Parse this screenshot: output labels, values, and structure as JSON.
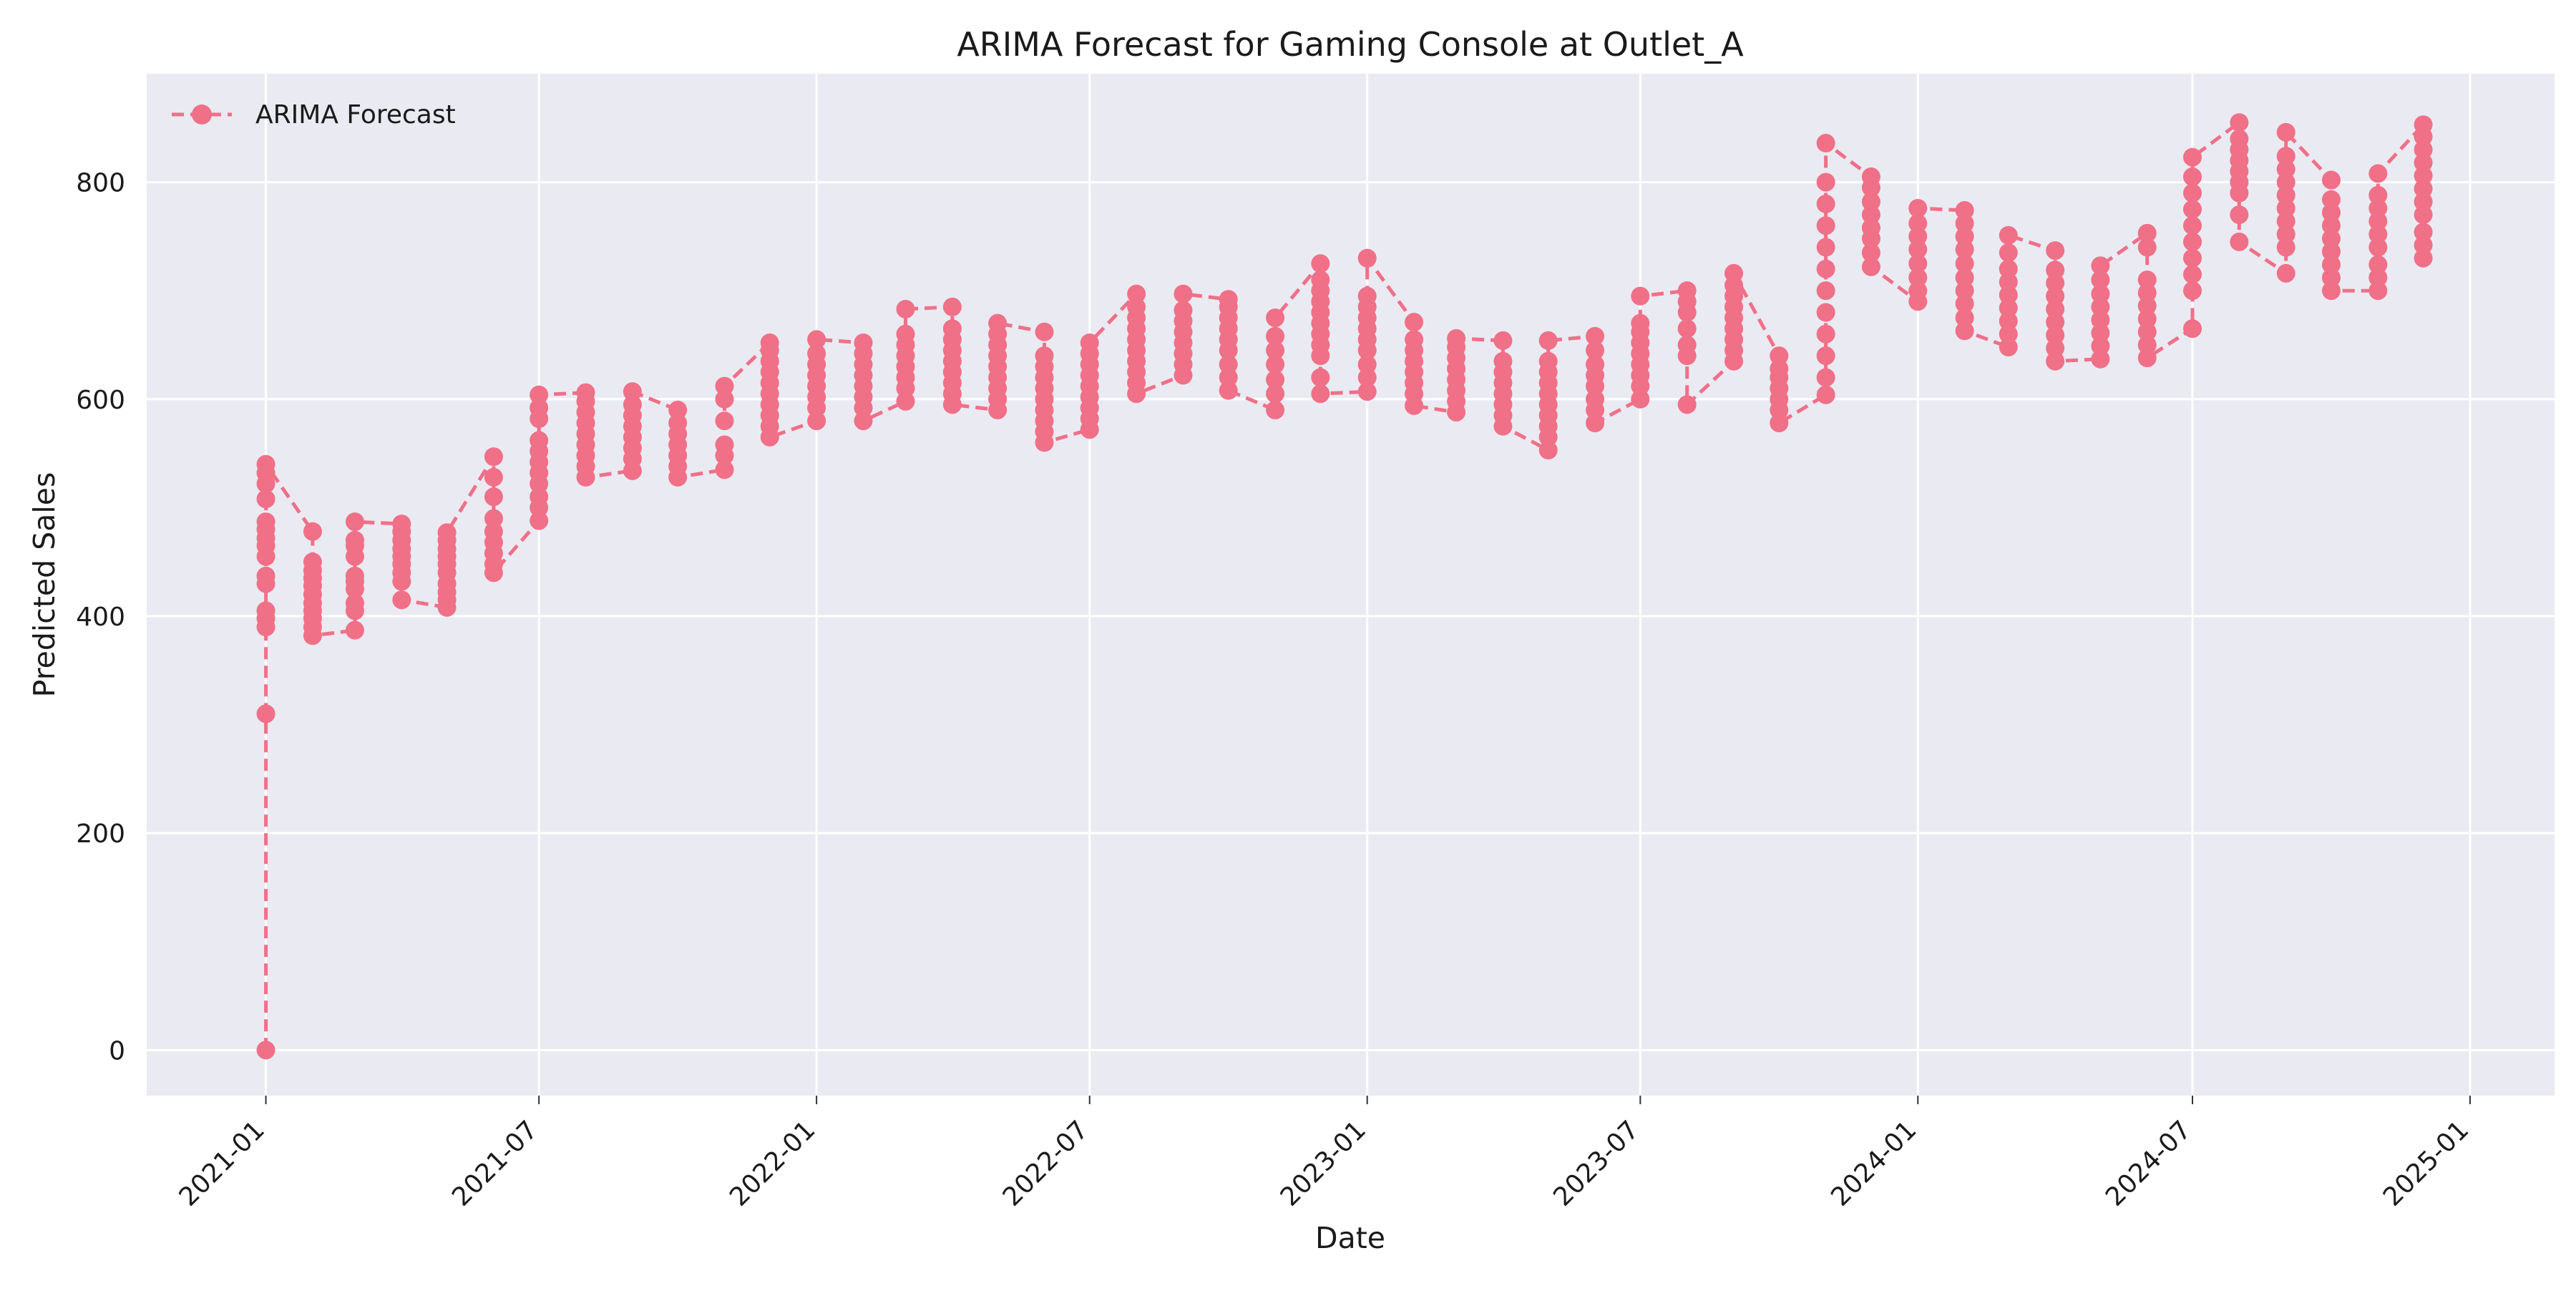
{
  "chart_data": {
    "type": "line",
    "title": "ARIMA Forecast for Gaming Console at Outlet_A",
    "xlabel": "Date",
    "ylabel": "Predicted Sales",
    "xlim": [
      "2020-10-14",
      "2025-02-26"
    ],
    "ylim": [
      -42,
      900
    ],
    "x_ticks": [
      "2021-01",
      "2021-07",
      "2022-01",
      "2022-07",
      "2023-01",
      "2023-07",
      "2024-01",
      "2024-07",
      "2025-01"
    ],
    "y_ticks": [
      0,
      200,
      400,
      600,
      800
    ],
    "grid": true,
    "legend_position": "top-left",
    "colors": {
      "series": "#f07088",
      "plot_bg": "#eaeaf2",
      "grid": "#ffffff"
    },
    "series": [
      {
        "name": "ARIMA Forecast",
        "style": "dashed line with circle markers",
        "months": [
          {
            "date": "2021-01-01",
            "values": [
              0,
              310,
              390,
              398,
              405,
              430,
              437,
              455,
              465,
              472,
              480,
              487,
              508,
              522,
              532,
              540
            ]
          },
          {
            "date": "2021-02-01",
            "values": [
              382,
              390,
              398,
              405,
              412,
              420,
              428,
              435,
              442,
              450,
              478
            ]
          },
          {
            "date": "2021-03-01",
            "values": [
              387,
              405,
              412,
              425,
              432,
              437,
              455,
              465,
              470,
              487
            ]
          },
          {
            "date": "2021-04-01",
            "values": [
              415,
              432,
              440,
              448,
              455,
              462,
              470,
              478,
              485
            ]
          },
          {
            "date": "2021-05-01",
            "values": [
              408,
              415,
              422,
              430,
              440,
              448,
              455,
              462,
              470,
              477
            ]
          },
          {
            "date": "2021-06-01",
            "values": [
              440,
              448,
              458,
              468,
              478,
              490,
              510,
              528,
              547
            ]
          },
          {
            "date": "2021-07-01",
            "values": [
              488,
              500,
              510,
              522,
              532,
              542,
              552,
              562,
              582,
              592,
              604
            ]
          },
          {
            "date": "2021-08-01",
            "values": [
              528,
              538,
              548,
              558,
              568,
              578,
              588,
              598,
              606
            ]
          },
          {
            "date": "2021-09-01",
            "values": [
              534,
              545,
              555,
              565,
              575,
              585,
              595,
              607
            ]
          },
          {
            "date": "2021-10-01",
            "values": [
              528,
              538,
              548,
              558,
              568,
              578,
              590
            ]
          },
          {
            "date": "2021-11-01",
            "values": [
              535,
              548,
              558,
              580,
              600,
              612
            ]
          },
          {
            "date": "2021-12-01",
            "values": [
              565,
              575,
              585,
              595,
              605,
              615,
              625,
              635,
              645,
              652
            ]
          },
          {
            "date": "2022-01-01",
            "values": [
              580,
              592,
              602,
              612,
              622,
              632,
              642,
              655
            ]
          },
          {
            "date": "2022-02-01",
            "values": [
              580,
              592,
              602,
              612,
              622,
              632,
              642,
              652
            ]
          },
          {
            "date": "2022-03-01",
            "values": [
              598,
              610,
              620,
              630,
              640,
              650,
              660,
              683
            ]
          },
          {
            "date": "2022-04-01",
            "values": [
              595,
              605,
              615,
              625,
              635,
              645,
              655,
              665,
              685
            ]
          },
          {
            "date": "2022-05-01",
            "values": [
              590,
              600,
              610,
              620,
              630,
              640,
              650,
              660,
              670
            ]
          },
          {
            "date": "2022-06-01",
            "values": [
              560,
              570,
              580,
              590,
              600,
              610,
              620,
              630,
              640,
              662
            ]
          },
          {
            "date": "2022-07-01",
            "values": [
              572,
              582,
              592,
              602,
              612,
              622,
              632,
              642,
              652
            ]
          },
          {
            "date": "2022-08-01",
            "values": [
              605,
              615,
              625,
              635,
              645,
              655,
              665,
              675,
              685,
              697
            ]
          },
          {
            "date": "2022-09-01",
            "values": [
              622,
              632,
              642,
              652,
              662,
              672,
              682,
              697
            ]
          },
          {
            "date": "2022-10-01",
            "values": [
              608,
              620,
              632,
              645,
              655,
              665,
              675,
              685,
              692
            ]
          },
          {
            "date": "2022-11-01",
            "values": [
              590,
              605,
              618,
              632,
              645,
              658,
              675
            ]
          },
          {
            "date": "2022-12-01",
            "values": [
              605,
              620,
              640,
              650,
              660,
              670,
              680,
              690,
              700,
              710,
              725
            ]
          },
          {
            "date": "2023-01-01",
            "values": [
              607,
              620,
              632,
              645,
              655,
              665,
              675,
              685,
              695,
              730
            ]
          },
          {
            "date": "2023-02-01",
            "values": [
              594,
              605,
              615,
              625,
              635,
              645,
              655,
              671
            ]
          },
          {
            "date": "2023-03-01",
            "values": [
              588,
              598,
              608,
              618,
              628,
              638,
              648,
              656
            ]
          },
          {
            "date": "2023-04-01",
            "values": [
              575,
              585,
              595,
              605,
              615,
              625,
              635,
              654
            ]
          },
          {
            "date": "2023-05-01",
            "values": [
              553,
              565,
              575,
              585,
              595,
              605,
              615,
              625,
              635,
              654
            ]
          },
          {
            "date": "2023-06-01",
            "values": [
              578,
              590,
              600,
              612,
              622,
              632,
              645,
              658
            ]
          },
          {
            "date": "2023-07-01",
            "values": [
              600,
              612,
              622,
              632,
              642,
              652,
              662,
              670,
              695
            ]
          },
          {
            "date": "2023-08-01",
            "values": [
              595,
              640,
              650,
              665,
              680,
              690,
              700
            ]
          },
          {
            "date": "2023-09-01",
            "values": [
              635,
              645,
              655,
              665,
              675,
              685,
              695,
              705,
              716
            ]
          },
          {
            "date": "2023-10-01",
            "values": [
              578,
              590,
              600,
              610,
              620,
              628,
              640
            ]
          },
          {
            "date": "2023-11-01",
            "values": [
              604,
              620,
              640,
              660,
              680,
              700,
              720,
              740,
              760,
              780,
              800,
              836
            ]
          },
          {
            "date": "2023-12-01",
            "values": [
              722,
              735,
              748,
              758,
              770,
              782,
              795,
              805
            ]
          },
          {
            "date": "2024-01-01",
            "values": [
              690,
              700,
              712,
              725,
              738,
              750,
              762,
              776
            ]
          },
          {
            "date": "2024-02-01",
            "values": [
              663,
              675,
              688,
              700,
              712,
              725,
              738,
              750,
              762,
              774
            ]
          },
          {
            "date": "2024-03-01",
            "values": [
              648,
              660,
              672,
              684,
              696,
              708,
              720,
              735,
              751
            ]
          },
          {
            "date": "2024-04-01",
            "values": [
              635,
              647,
              659,
              671,
              683,
              695,
              707,
              719,
              737
            ]
          },
          {
            "date": "2024-05-01",
            "values": [
              637,
              649,
              661,
              673,
              685,
              697,
              710,
              723
            ]
          },
          {
            "date": "2024-06-01",
            "values": [
              638,
              650,
              662,
              674,
              686,
              698,
              710,
              740,
              753
            ]
          },
          {
            "date": "2024-07-01",
            "values": [
              665,
              700,
              715,
              730,
              745,
              760,
              775,
              790,
              805,
              823
            ]
          },
          {
            "date": "2024-08-01",
            "values": [
              745,
              770,
              790,
              800,
              810,
              820,
              830,
              840,
              855
            ]
          },
          {
            "date": "2024-09-01",
            "values": [
              716,
              740,
              752,
              764,
              776,
              788,
              800,
              812,
              824,
              846
            ]
          },
          {
            "date": "2024-10-01",
            "values": [
              700,
              712,
              724,
              736,
              748,
              760,
              772,
              784,
              802
            ]
          },
          {
            "date": "2024-11-01",
            "values": [
              700,
              712,
              724,
              740,
              752,
              764,
              776,
              788,
              808
            ]
          },
          {
            "date": "2024-12-01",
            "values": [
              730,
              742,
              754,
              770,
              782,
              794,
              806,
              818,
              830,
              842,
              853
            ]
          }
        ]
      }
    ]
  }
}
